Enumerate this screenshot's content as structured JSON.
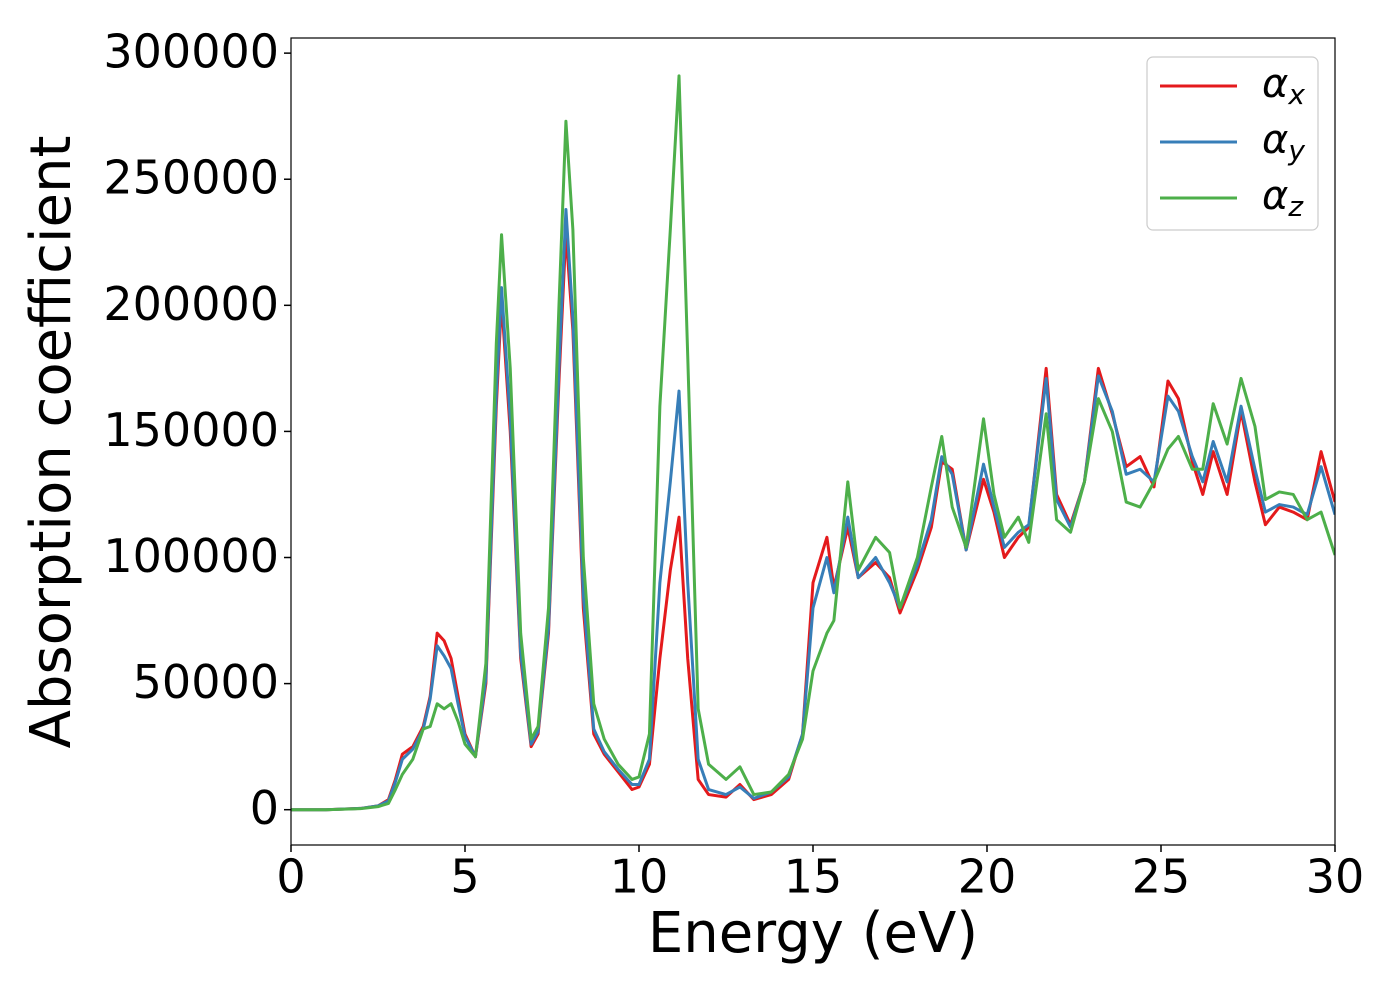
{
  "chart_data": {
    "type": "line",
    "xlabel": "Energy (eV)",
    "ylabel": "Absorption coefficient",
    "x": [
      0,
      1,
      2,
      2.5,
      2.8,
      3.0,
      3.2,
      3.5,
      3.8,
      4.0,
      4.2,
      4.4,
      4.6,
      4.8,
      5.0,
      5.3,
      5.6,
      5.9,
      6.05,
      6.3,
      6.6,
      6.9,
      7.1,
      7.4,
      7.7,
      7.9,
      8.1,
      8.4,
      8.7,
      9.0,
      9.4,
      9.8,
      10.0,
      10.3,
      10.6,
      10.9,
      11.15,
      11.4,
      11.7,
      12.0,
      12.5,
      12.9,
      13.3,
      13.8,
      14.3,
      14.7,
      15.0,
      15.4,
      15.6,
      16.0,
      16.3,
      16.8,
      17.2,
      17.5,
      18.0,
      18.4,
      18.7,
      19.0,
      19.4,
      19.9,
      20.2,
      20.5,
      20.9,
      21.2,
      21.7,
      22.0,
      22.4,
      22.8,
      23.2,
      23.6,
      24.0,
      24.4,
      24.8,
      25.2,
      25.5,
      25.9,
      26.2,
      26.5,
      26.9,
      27.3,
      27.7,
      28.0,
      28.4,
      28.8,
      29.2,
      29.6,
      30.0
    ],
    "series": [
      {
        "name": "αx",
        "color": "#e41a1c",
        "values": [
          0,
          0,
          500,
          1500,
          4000,
          12000,
          22000,
          25000,
          33000,
          45000,
          70000,
          67000,
          60000,
          45000,
          30000,
          21000,
          50000,
          160000,
          202000,
          150000,
          60000,
          25000,
          30000,
          70000,
          170000,
          229000,
          190000,
          80000,
          30000,
          22000,
          15000,
          8000,
          9000,
          18000,
          60000,
          95000,
          116000,
          60000,
          12000,
          6000,
          5000,
          10000,
          4000,
          6000,
          12000,
          30000,
          90000,
          108000,
          88000,
          112000,
          92000,
          98000,
          92000,
          78000,
          95000,
          112000,
          138000,
          135000,
          103000,
          131000,
          118000,
          100000,
          108000,
          112000,
          175000,
          125000,
          113000,
          130000,
          175000,
          157000,
          136000,
          140000,
          128000,
          170000,
          163000,
          138000,
          125000,
          142000,
          125000,
          158000,
          130000,
          113000,
          120000,
          118000,
          115000,
          142000,
          122000
        ]
      },
      {
        "name": "αy",
        "color": "#377eb8",
        "values": [
          0,
          0,
          500,
          1500,
          3500,
          11000,
          20000,
          24000,
          32000,
          44000,
          65000,
          61000,
          56000,
          42000,
          29000,
          21000,
          52000,
          165000,
          207000,
          155000,
          62000,
          26000,
          31000,
          72000,
          175000,
          238000,
          195000,
          85000,
          32000,
          23000,
          16000,
          10000,
          10000,
          20000,
          90000,
          130000,
          166000,
          90000,
          20000,
          8000,
          6000,
          9000,
          4500,
          7000,
          13000,
          30000,
          80000,
          100000,
          86000,
          116000,
          92000,
          100000,
          90000,
          80000,
          97000,
          115000,
          140000,
          133000,
          103000,
          137000,
          120000,
          104000,
          110000,
          113000,
          171000,
          123000,
          112000,
          130000,
          172000,
          158000,
          133000,
          135000,
          130000,
          164000,
          158000,
          140000,
          130000,
          146000,
          130000,
          160000,
          135000,
          118000,
          121000,
          120000,
          117000,
          136000,
          117000
        ]
      },
      {
        "name": "αz",
        "color": "#4daf4a",
        "values": [
          0,
          0,
          400,
          1200,
          2500,
          8000,
          14000,
          20000,
          32000,
          33000,
          42000,
          40000,
          42000,
          35000,
          26000,
          21000,
          58000,
          185000,
          228000,
          175000,
          70000,
          28000,
          33000,
          80000,
          200000,
          273000,
          230000,
          100000,
          42000,
          28000,
          18000,
          12000,
          13000,
          30000,
          160000,
          230000,
          291000,
          180000,
          40000,
          18000,
          12000,
          17000,
          6000,
          7000,
          14000,
          28000,
          55000,
          70000,
          75000,
          130000,
          95000,
          108000,
          102000,
          80000,
          100000,
          128000,
          148000,
          120000,
          104000,
          155000,
          125000,
          108000,
          116000,
          106000,
          157000,
          115000,
          110000,
          130000,
          163000,
          150000,
          122000,
          120000,
          130000,
          143000,
          148000,
          135000,
          135000,
          161000,
          145000,
          171000,
          152000,
          123000,
          126000,
          125000,
          115000,
          118000,
          101000
        ]
      }
    ],
    "xlim": [
      0,
      30
    ],
    "xticks": [
      0,
      5,
      10,
      15,
      20,
      25,
      30
    ],
    "ylim": [
      -14000,
      306000
    ],
    "yticks": [
      0,
      50000,
      100000,
      150000,
      200000,
      250000,
      300000
    ],
    "grid": false,
    "legend": "upper right"
  }
}
